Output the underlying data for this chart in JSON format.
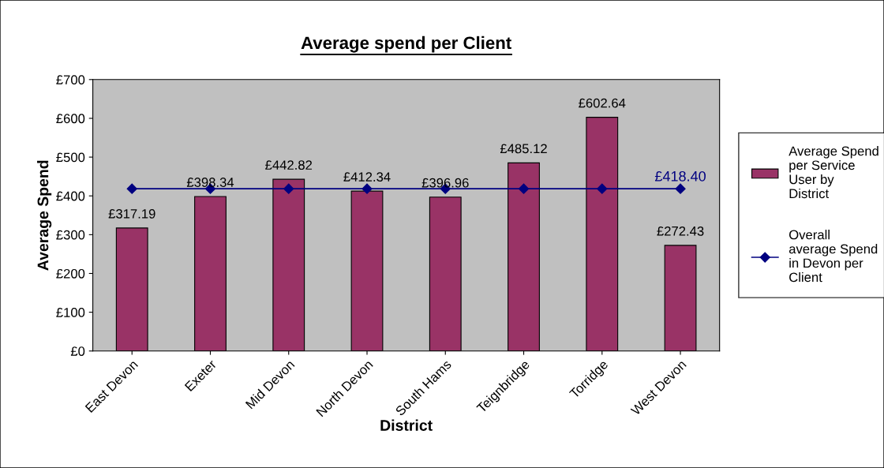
{
  "chart_data": {
    "type": "bar",
    "title": "Average spend per Client",
    "xlabel": "District",
    "ylabel": "Average Spend",
    "categories": [
      "East Devon",
      "Exeter",
      "Mid Devon",
      "North Devon",
      "South Hams",
      "Teignbridge",
      "Torridge",
      "West Devon"
    ],
    "series": [
      {
        "name": "Average Spend per Service User by District",
        "color": "#993366",
        "values": [
          317.19,
          398.34,
          442.82,
          412.34,
          396.96,
          485.12,
          602.64,
          272.43
        ],
        "value_labels": [
          "£317.19",
          "£398.34",
          "£442.82",
          "£412.34",
          "£396.96",
          "£485.12",
          "£602.64",
          "£272.43"
        ]
      },
      {
        "name": "Overall average Spend in Devon per Client",
        "type": "line",
        "color": "#000080",
        "marker": "diamond",
        "values": [
          418.4,
          418.4,
          418.4,
          418.4,
          418.4,
          418.4,
          418.4,
          418.4
        ],
        "value_labels": [
          null,
          null,
          null,
          null,
          null,
          null,
          null,
          "£418.40"
        ]
      }
    ],
    "ylim": [
      0,
      700
    ],
    "yticks": [
      {
        "value": 0,
        "label": "£0"
      },
      {
        "value": 100,
        "label": "£100"
      },
      {
        "value": 200,
        "label": "£200"
      },
      {
        "value": 300,
        "label": "£300"
      },
      {
        "value": 400,
        "label": "£400"
      },
      {
        "value": 500,
        "label": "£500"
      },
      {
        "value": 600,
        "label": "£600"
      },
      {
        "value": 700,
        "label": "£700"
      }
    ],
    "grid": false,
    "legend": "right"
  }
}
